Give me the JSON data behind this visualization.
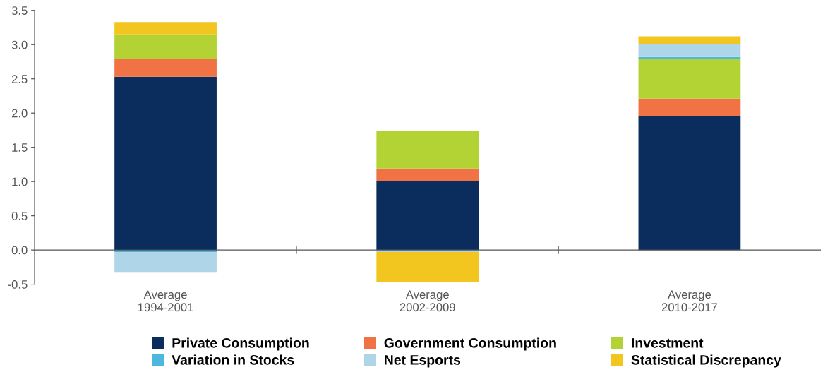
{
  "chart_data": {
    "type": "bar",
    "stacked": true,
    "categories": [
      "Average\n1994-2001",
      "Average\n2002-2009",
      "Average\n2010-2017"
    ],
    "series": [
      {
        "name": "Private Consumption",
        "color": "#0b2d5e",
        "values": [
          2.53,
          1.01,
          1.95
        ]
      },
      {
        "name": "Government Consumption",
        "color": "#f07245",
        "values": [
          0.26,
          0.18,
          0.26
        ]
      },
      {
        "name": "Investment",
        "color": "#b3d335",
        "values": [
          0.36,
          0.55,
          0.58
        ]
      },
      {
        "name": "Variation in Stocks",
        "color": "#4db8dd",
        "values": [
          -0.03,
          0,
          0.03
        ]
      },
      {
        "name": "Net Esports",
        "color": "#aed6e8",
        "values": [
          -0.3,
          -0.03,
          0.19
        ]
      },
      {
        "name": "Statistical Discrepancy",
        "color": "#f2c61f",
        "values": [
          0.18,
          -0.44,
          0.11
        ]
      }
    ],
    "ylim": [
      -0.5,
      3.5
    ],
    "yticks": [
      -0.5,
      {
        "value": 0,
        "label": "0.0"
      },
      0.5,
      {
        "value": 1,
        "label": "1.0"
      },
      1.5,
      {
        "value": 2,
        "label": "2.0"
      },
      2.5,
      {
        "value": 3,
        "label": "3.0"
      },
      3.5
    ],
    "legend": "bottom"
  }
}
